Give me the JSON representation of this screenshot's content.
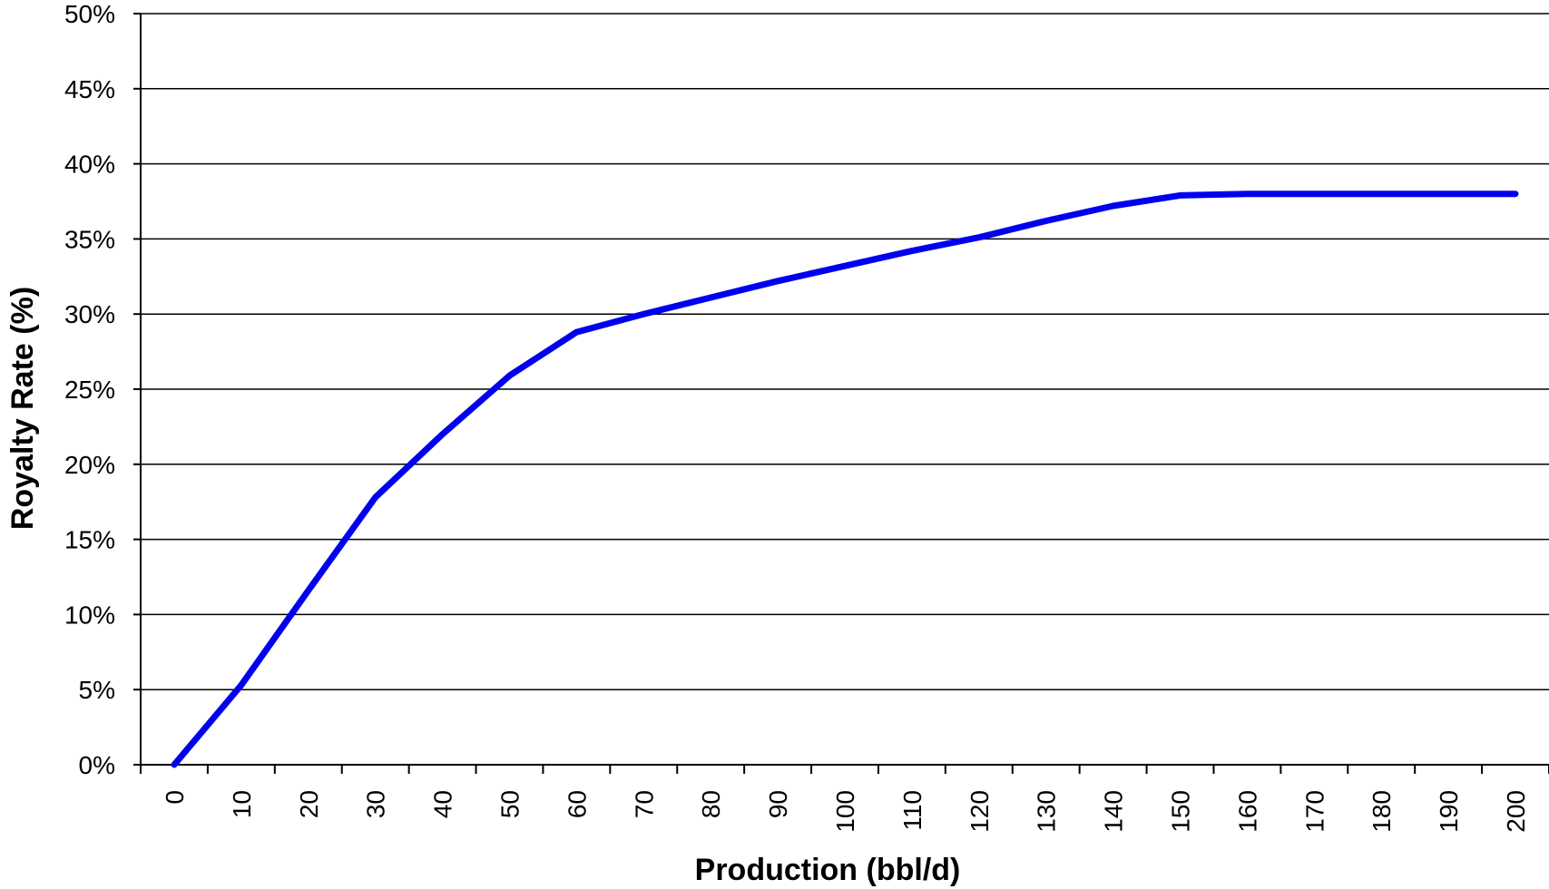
{
  "chart_data": {
    "type": "line",
    "title": "",
    "xlabel": "Production (bbl/d)",
    "ylabel": "Royalty Rate (%)",
    "categories": [
      "0",
      "10",
      "20",
      "30",
      "40",
      "50",
      "60",
      "70",
      "80",
      "90",
      "100",
      "110",
      "120",
      "130",
      "140",
      "150",
      "160",
      "170",
      "180",
      "190",
      "200"
    ],
    "series": [
      {
        "color": "#0000ee",
        "values": [
          0,
          5.3,
          11.6,
          17.8,
          22.0,
          25.9,
          28.8,
          30.0,
          31.1,
          32.2,
          33.2,
          34.2,
          35.1,
          36.2,
          37.2,
          37.9,
          38.0,
          38.0,
          38.0,
          38.0,
          38.0
        ]
      }
    ],
    "yticks": [
      "0%",
      "5%",
      "10%",
      "15%",
      "20%",
      "25%",
      "30%",
      "35%",
      "40%",
      "45%",
      "50%"
    ],
    "ylim": [
      0,
      50
    ],
    "grid": true,
    "legend": "none"
  }
}
